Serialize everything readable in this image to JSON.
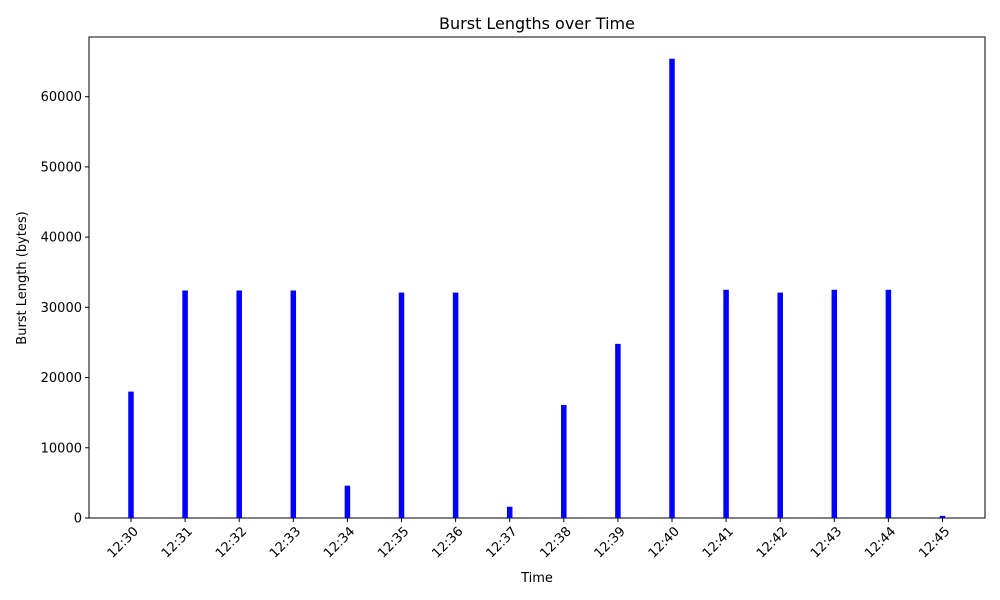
{
  "chart_data": {
    "type": "bar",
    "title": "Burst Lengths over Time",
    "xlabel": "Time",
    "ylabel": "Burst Length (bytes)",
    "categories": [
      "12:30",
      "12:31",
      "12:32",
      "12:33",
      "12:34",
      "12:35",
      "12:36",
      "12:37",
      "12:38",
      "12:39",
      "12:40",
      "12:41",
      "12:42",
      "12:43",
      "12:44",
      "12:45"
    ],
    "values": [
      18000,
      32400,
      32400,
      32400,
      4600,
      32100,
      32100,
      1600,
      16100,
      24800,
      65400,
      32500,
      32100,
      32500,
      32500,
      300
    ],
    "ylim": [
      0,
      68500
    ],
    "yticks": [
      0,
      10000,
      20000,
      30000,
      40000,
      50000,
      60000
    ],
    "bar_color": "#0000ff",
    "grid": false,
    "legend": "none"
  }
}
